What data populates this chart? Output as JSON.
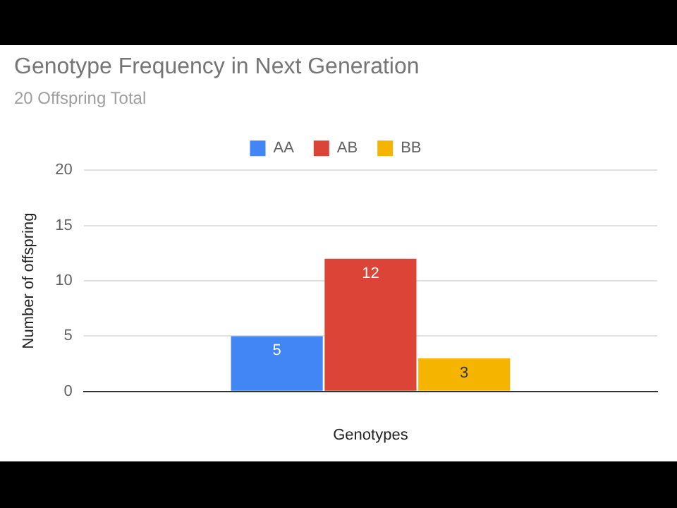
{
  "chart_data": {
    "type": "bar",
    "title": "Genotype Frequency in Next Generation",
    "subtitle": "20 Offspring Total",
    "xlabel": "Genotypes",
    "ylabel": "Number of offspring",
    "categories": [
      null
    ],
    "series": [
      {
        "name": "AA",
        "color": "#4285f4",
        "values": [
          5
        ]
      },
      {
        "name": "AB",
        "color": "#db4437",
        "values": [
          12
        ]
      },
      {
        "name": "BB",
        "color": "#f4b400",
        "values": [
          3
        ]
      }
    ],
    "ylim": [
      0,
      20
    ],
    "yticks": [
      0,
      5,
      10,
      15,
      20
    ],
    "grid": "y",
    "legend": "top",
    "data_labels": true
  }
}
